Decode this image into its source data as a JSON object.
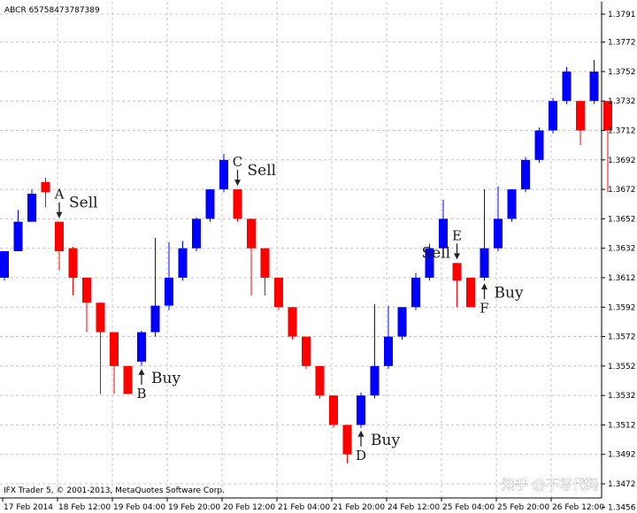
{
  "window": {
    "symbol_title": "ABCR 65758473787389",
    "copyright": "IFX Trader 5, © 2001-2013, MetaQuotes Software Corp.",
    "watermark": "知乎 @不写代码"
  },
  "colors": {
    "bull": "#0000ff",
    "bear": "#ff0000",
    "grid": "#c8c8c8",
    "background": "#ffffff",
    "axis": "#000000"
  },
  "chart_data": {
    "type": "candlestick",
    "ylim": [
      1.3466,
      1.3797
    ],
    "yticks": [
      "1.3791",
      "1.3772",
      "1.3752",
      "1.3732",
      "1.3712",
      "1.3692",
      "1.3672",
      "1.3652",
      "1.3632",
      "1.3612",
      "1.3592",
      "1.3572",
      "1.3552",
      "1.3532",
      "1.3512",
      "1.3492",
      "1.3472",
      "1.3456"
    ],
    "xticks": [
      "17 Feb 2014",
      "18 Feb 12:00",
      "19 Feb 04:00",
      "19 Feb 20:00",
      "20 Feb 12:00",
      "21 Feb 04:00",
      "21 Feb 20:00",
      "24 Feb 12:00",
      "25 Feb 04:00",
      "25 Feb 20:00",
      "26 Feb 12:00"
    ],
    "candles": [
      {
        "o": 1.3612,
        "h": 1.363,
        "l": 1.361,
        "c": 1.363
      },
      {
        "o": 1.363,
        "h": 1.3658,
        "l": 1.363,
        "c": 1.365
      },
      {
        "o": 1.365,
        "h": 1.3672,
        "l": 1.365,
        "c": 1.3669
      },
      {
        "o": 1.3677,
        "h": 1.368,
        "l": 1.366,
        "c": 1.367
      },
      {
        "o": 1.365,
        "h": 1.365,
        "l": 1.3617,
        "c": 1.363
      },
      {
        "o": 1.3632,
        "h": 1.3633,
        "l": 1.36,
        "c": 1.3612
      },
      {
        "o": 1.3612,
        "h": 1.3612,
        "l": 1.3575,
        "c": 1.3595
      },
      {
        "o": 1.3595,
        "h": 1.3595,
        "l": 1.3533,
        "c": 1.3575
      },
      {
        "o": 1.3575,
        "h": 1.3575,
        "l": 1.3533,
        "c": 1.3552
      },
      {
        "o": 1.3552,
        "h": 1.3552,
        "l": 1.3533,
        "c": 1.3533
      },
      {
        "o": 1.3555,
        "h": 1.3576,
        "l": 1.3552,
        "c": 1.3575
      },
      {
        "o": 1.3575,
        "h": 1.3639,
        "l": 1.3572,
        "c": 1.3593
      },
      {
        "o": 1.3593,
        "h": 1.3636,
        "l": 1.359,
        "c": 1.3612
      },
      {
        "o": 1.3612,
        "h": 1.3637,
        "l": 1.361,
        "c": 1.3632
      },
      {
        "o": 1.3632,
        "h": 1.3653,
        "l": 1.363,
        "c": 1.3652
      },
      {
        "o": 1.3652,
        "h": 1.3672,
        "l": 1.365,
        "c": 1.3672
      },
      {
        "o": 1.3672,
        "h": 1.3696,
        "l": 1.367,
        "c": 1.3692
      },
      {
        "o": 1.3672,
        "h": 1.3672,
        "l": 1.365,
        "c": 1.3652
      },
      {
        "o": 1.3652,
        "h": 1.3652,
        "l": 1.36,
        "c": 1.3632
      },
      {
        "o": 1.3632,
        "h": 1.3632,
        "l": 1.36,
        "c": 1.3612
      },
      {
        "o": 1.3612,
        "h": 1.3612,
        "l": 1.359,
        "c": 1.3592
      },
      {
        "o": 1.3592,
        "h": 1.3592,
        "l": 1.357,
        "c": 1.3572
      },
      {
        "o": 1.3572,
        "h": 1.3572,
        "l": 1.355,
        "c": 1.3552
      },
      {
        "o": 1.3552,
        "h": 1.3552,
        "l": 1.353,
        "c": 1.3532
      },
      {
        "o": 1.3532,
        "h": 1.3532,
        "l": 1.351,
        "c": 1.3512
      },
      {
        "o": 1.3512,
        "h": 1.3512,
        "l": 1.3486,
        "c": 1.3492
      },
      {
        "o": 1.3512,
        "h": 1.3534,
        "l": 1.351,
        "c": 1.3532
      },
      {
        "o": 1.3532,
        "h": 1.3594,
        "l": 1.353,
        "c": 1.3552
      },
      {
        "o": 1.3552,
        "h": 1.3593,
        "l": 1.355,
        "c": 1.3572
      },
      {
        "o": 1.3572,
        "h": 1.3592,
        "l": 1.357,
        "c": 1.3592
      },
      {
        "o": 1.3592,
        "h": 1.3615,
        "l": 1.359,
        "c": 1.3612
      },
      {
        "o": 1.3612,
        "h": 1.3635,
        "l": 1.361,
        "c": 1.3632
      },
      {
        "o": 1.3632,
        "h": 1.3665,
        "l": 1.363,
        "c": 1.3652
      },
      {
        "o": 1.3622,
        "h": 1.3622,
        "l": 1.3592,
        "c": 1.361
      },
      {
        "o": 1.3612,
        "h": 1.3612,
        "l": 1.3592,
        "c": 1.3592
      },
      {
        "o": 1.3612,
        "h": 1.3672,
        "l": 1.361,
        "c": 1.3632
      },
      {
        "o": 1.3632,
        "h": 1.3674,
        "l": 1.363,
        "c": 1.3652
      },
      {
        "o": 1.3652,
        "h": 1.3672,
        "l": 1.365,
        "c": 1.3672
      },
      {
        "o": 1.3672,
        "h": 1.3694,
        "l": 1.367,
        "c": 1.3692
      },
      {
        "o": 1.3692,
        "h": 1.3714,
        "l": 1.369,
        "c": 1.3712
      },
      {
        "o": 1.3712,
        "h": 1.3734,
        "l": 1.371,
        "c": 1.3732
      },
      {
        "o": 1.3732,
        "h": 1.3755,
        "l": 1.373,
        "c": 1.3752
      },
      {
        "o": 1.3732,
        "h": 1.3732,
        "l": 1.3702,
        "c": 1.3712
      },
      {
        "o": 1.3732,
        "h": 1.376,
        "l": 1.373,
        "c": 1.3752
      },
      {
        "o": 1.3732,
        "h": 1.3732,
        "l": 1.367,
        "c": 1.3712
      }
    ]
  },
  "annotations": [
    {
      "letter": "A",
      "label": "Sell",
      "direction": "down",
      "candle": 4
    },
    {
      "letter": "B",
      "label": "Buy",
      "direction": "up",
      "candle": 10
    },
    {
      "letter": "C",
      "label": "Sell",
      "direction": "down",
      "candle": 17
    },
    {
      "letter": "D",
      "label": "Buy",
      "direction": "up",
      "candle": 26
    },
    {
      "letter": "E",
      "label": "Sell",
      "direction": "down",
      "candle": 33
    },
    {
      "letter": "F",
      "label": "Buy",
      "direction": "up",
      "candle": 35
    }
  ]
}
